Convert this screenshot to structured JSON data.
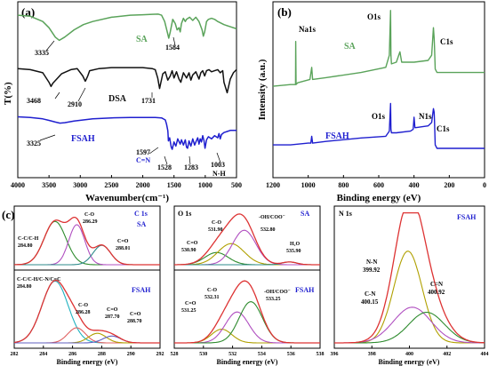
{
  "chart_data": [
    {
      "panel": "(a)",
      "type": "line",
      "xlabel": "Wavenumber(cm⁻¹)",
      "ylabel": "T(%)",
      "xlim": [
        4000,
        500
      ],
      "xticks": [
        "4000",
        "3500",
        "3000",
        "2500",
        "2000",
        "1500",
        "1000",
        "500"
      ],
      "series": [
        {
          "name": "SA",
          "color": "#5aa35a",
          "offset": 6.0,
          "x": [
            4000,
            3800,
            3600,
            3500,
            3400,
            3335,
            3250,
            3100,
            2950,
            2800,
            2500,
            2200,
            2000,
            1850,
            1750,
            1700,
            1650,
            1600,
            1584,
            1560,
            1520,
            1480,
            1450,
            1420,
            1400,
            1380,
            1350,
            1320,
            1300,
            1250,
            1200,
            1150,
            1100,
            1050,
            1030,
            1010,
            980,
            950,
            900,
            850,
            800,
            700,
            600,
            500
          ],
          "y": [
            0.6,
            0.55,
            0.3,
            0.0,
            -0.45,
            -0.6,
            -0.45,
            -0.1,
            0.15,
            0.3,
            0.5,
            0.6,
            0.62,
            0.64,
            0.65,
            0.6,
            0.3,
            -0.3,
            -0.5,
            -0.2,
            0.4,
            0.2,
            -0.1,
            0.0,
            -0.2,
            0.2,
            0.45,
            0.3,
            0.4,
            0.5,
            0.35,
            0.5,
            0.3,
            -0.1,
            -0.4,
            -0.2,
            0.3,
            0.4,
            0.45,
            0.4,
            0.3,
            0.15,
            0.05,
            -0.05
          ]
        },
        {
          "name": "DSA",
          "color": "#111111",
          "offset": 3.0,
          "x": [
            4000,
            3800,
            3600,
            3500,
            3468,
            3440,
            3300,
            3150,
            3050,
            2960,
            2920,
            2910,
            2880,
            2850,
            2700,
            2500,
            2200,
            2000,
            1850,
            1800,
            1760,
            1731,
            1710,
            1680,
            1640,
            1600,
            1560,
            1530,
            1500,
            1460,
            1420,
            1390,
            1350,
            1300,
            1260,
            1230,
            1200,
            1150,
            1100,
            1070,
            1040,
            1010,
            980,
            940,
            900,
            850,
            800,
            760,
            720,
            700,
            650,
            600,
            550,
            500
          ],
          "y": [
            1.05,
            1.0,
            0.85,
            0.4,
            0.2,
            0.35,
            0.8,
            1.0,
            1.05,
            0.7,
            0.45,
            0.5,
            0.7,
            0.95,
            1.05,
            1.1,
            1.1,
            1.1,
            1.05,
            1.0,
            0.6,
            0.1,
            0.4,
            0.8,
            0.9,
            0.5,
            0.7,
            0.95,
            0.6,
            0.9,
            0.55,
            0.4,
            0.85,
            0.6,
            0.85,
            0.5,
            0.75,
            0.9,
            0.55,
            0.85,
            0.95,
            0.7,
            0.95,
            1.0,
            0.9,
            0.95,
            1.0,
            0.85,
            0.95,
            0.4,
            -0.1,
            0.55,
            0.85,
            1.0
          ]
        },
        {
          "name": "FSAH",
          "color": "#1f1fcf",
          "offset": 0.0,
          "x": [
            4000,
            3800,
            3600,
            3500,
            3400,
            3325,
            3250,
            3100,
            2950,
            2800,
            2500,
            2200,
            2000,
            1800,
            1700,
            1640,
            1620,
            1600,
            1597,
            1590,
            1570,
            1545,
            1528,
            1500,
            1470,
            1440,
            1400,
            1380,
            1350,
            1320,
            1300,
            1283,
            1260,
            1230,
            1200,
            1170,
            1150,
            1120,
            1100,
            1080,
            1060,
            1040,
            1020,
            1003,
            980,
            950,
            900,
            850,
            800,
            780,
            760,
            740,
            700,
            650,
            600,
            500
          ],
          "y": [
            1.75,
            1.72,
            1.65,
            1.58,
            1.5,
            1.45,
            1.47,
            1.55,
            1.6,
            1.65,
            1.7,
            1.72,
            1.72,
            1.72,
            1.7,
            1.6,
            1.4,
            1.1,
            1.0,
            0.6,
            0.75,
            0.3,
            0.2,
            0.55,
            0.35,
            0.7,
            0.45,
            0.65,
            0.4,
            0.65,
            0.3,
            0.25,
            0.6,
            0.35,
            0.7,
            0.4,
            0.55,
            0.75,
            0.45,
            0.7,
            0.55,
            0.85,
            0.6,
            0.25,
            0.65,
            0.8,
            0.7,
            0.85,
            0.75,
            0.95,
            0.7,
            0.9,
            1.0,
            1.05,
            1.1,
            1.1
          ]
        }
      ],
      "annotations": [
        {
          "text": "3335",
          "x": 3335,
          "series": "SA"
        },
        {
          "text": "1584",
          "x": 1584,
          "series": "SA"
        },
        {
          "text": "3468",
          "x": 3468,
          "series": "DSA"
        },
        {
          "text": "2910",
          "x": 2910,
          "series": "DSA"
        },
        {
          "text": "1731",
          "x": 1731,
          "series": "DSA"
        },
        {
          "text": "3325",
          "x": 3325,
          "series": "FSAH"
        },
        {
          "text": "1597",
          "x": 1597,
          "series": "FSAH"
        },
        {
          "text": "C=N",
          "x": 1597,
          "series": "FSAH"
        },
        {
          "text": "1528",
          "x": 1528,
          "series": "FSAH"
        },
        {
          "text": "1283",
          "x": 1283,
          "series": "FSAH"
        },
        {
          "text": "1003",
          "x": 1003,
          "series": "FSAH"
        },
        {
          "text": "N-H",
          "x": 1003,
          "series": "FSAH"
        }
      ]
    },
    {
      "panel": "(b)",
      "type": "line",
      "xlabel": "Binding energy (eV)",
      "ylabel": "Intensity (a.u.)",
      "xlim": [
        1200,
        0
      ],
      "xticks": [
        "1200",
        "1000",
        "800",
        "600",
        "400",
        "200",
        "0"
      ],
      "series": [
        {
          "name": "SA",
          "color": "#5aa35a",
          "x": [
            1200,
            1100,
            1072,
            1071,
            1069,
            1060,
            990,
            980,
            975,
            900,
            700,
            560,
            540,
            533,
            531,
            528,
            500,
            480,
            470,
            450,
            400,
            320,
            300,
            290,
            286,
            284,
            280,
            270,
            250,
            200,
            100,
            0
          ],
          "y": [
            52,
            53,
            53,
            78,
            53,
            54,
            56,
            63,
            56,
            57,
            60,
            63,
            70,
            96,
            70,
            65,
            66,
            72,
            66,
            66,
            66,
            67,
            70,
            86,
            80,
            75,
            62,
            60,
            60,
            60,
            60,
            60
          ]
        },
        {
          "name": "FSAH",
          "color": "#1f1fcf",
          "x": [
            1200,
            1100,
            1000,
            985,
            980,
            975,
            900,
            700,
            560,
            540,
            533,
            531,
            528,
            500,
            420,
            405,
            400,
            395,
            390,
            320,
            300,
            290,
            286,
            284,
            280,
            270,
            250,
            200,
            100,
            0
          ],
          "y": [
            18,
            18,
            19,
            19,
            23,
            19,
            20,
            22,
            23,
            26,
            42,
            27,
            25,
            25,
            26,
            27,
            34,
            28,
            28,
            29,
            31,
            39,
            37,
            32,
            18,
            16,
            16,
            16,
            16,
            16
          ]
        }
      ],
      "annotations": [
        {
          "text": "Na1s",
          "series": "SA"
        },
        {
          "text": "O1s",
          "series": "SA"
        },
        {
          "text": "C1s",
          "series": "SA"
        },
        {
          "text": "O1s",
          "series": "FSAH"
        },
        {
          "text": "N1s",
          "series": "FSAH"
        },
        {
          "text": "C1s",
          "series": "FSAH"
        }
      ]
    },
    {
      "panel": "(c)",
      "type": "line",
      "subplots": [
        {
          "title": "C 1s",
          "xlabel": "Binding energy (eV)",
          "xlim": [
            282,
            292
          ],
          "xticks": [
            "282",
            "284",
            "286",
            "288",
            "290",
            "292"
          ],
          "rows": [
            {
              "label": "SA",
              "peaks": [
                {
                  "center": 284.8,
                  "height": 0.78,
                  "width": 0.75,
                  "color": "#2e8b2e",
                  "label": "C-C/C-H",
                  "value": "284.80"
                },
                {
                  "center": 286.29,
                  "height": 0.72,
                  "width": 0.55,
                  "color": "#b04fc0",
                  "label": "C-O",
                  "value": "286.29"
                },
                {
                  "center": 288.01,
                  "height": 0.35,
                  "width": 0.6,
                  "color": "#2e8b8b",
                  "label": "C=O",
                  "value": "288.01"
                }
              ]
            },
            {
              "label": "FSAH",
              "peaks": [
                {
                  "center": 284.8,
                  "height": 0.9,
                  "width": 0.9,
                  "color": "#20b2c0",
                  "label": "C-C/C-H/C-N/C=C",
                  "value": "284.80"
                },
                {
                  "center": 286.28,
                  "height": 0.22,
                  "width": 0.6,
                  "color": "#e06060",
                  "label": "C-O",
                  "value": "286.28"
                },
                {
                  "center": 287.7,
                  "height": 0.14,
                  "width": 0.6,
                  "color": "#b0a000",
                  "label": "C=O",
                  "value": "287.70"
                },
                {
                  "center": 288.7,
                  "height": 0.1,
                  "width": 0.6,
                  "color": "#6060c0",
                  "label": "C=O",
                  "value": "288.70"
                }
              ]
            }
          ]
        },
        {
          "title": "O 1s",
          "xlabel": "Binding energy (eV)",
          "xlim": [
            528,
            538
          ],
          "xticks": [
            "528",
            "530",
            "532",
            "534",
            "536",
            "538"
          ],
          "rows": [
            {
              "label": "SA",
              "peaks": [
                {
                  "center": 530.9,
                  "height": 0.22,
                  "width": 0.8,
                  "color": "#2e8b2e",
                  "label": "C=O",
                  "value": "530.90"
                },
                {
                  "center": 531.9,
                  "height": 0.38,
                  "width": 0.9,
                  "color": "#b0a000",
                  "label": "C-O",
                  "value": "531.90"
                },
                {
                  "center": 532.8,
                  "height": 0.62,
                  "width": 0.8,
                  "color": "#b04fc0",
                  "label": "-OH/COO⁻",
                  "value": "532.80"
                },
                {
                  "center": 535.9,
                  "height": 0.05,
                  "width": 0.5,
                  "color": "#2e8b8b",
                  "label": "H₂O",
                  "value": "535.90"
                }
              ]
            },
            {
              "label": "FSAH",
              "peaks": [
                {
                  "center": 531.25,
                  "height": 0.2,
                  "width": 0.7,
                  "color": "#b0a000",
                  "label": "C=O",
                  "value": "531.25"
                },
                {
                  "center": 532.31,
                  "height": 0.45,
                  "width": 0.8,
                  "color": "#b04fc0",
                  "label": "C-O",
                  "value": "532.31"
                },
                {
                  "center": 533.25,
                  "height": 0.6,
                  "width": 0.8,
                  "color": "#2e8b2e",
                  "label": "-OH/COO⁻",
                  "value": "533.25"
                }
              ]
            }
          ]
        },
        {
          "title": "N 1s",
          "xlabel": "Binding energy (eV)",
          "xlim": [
            396,
            404
          ],
          "xticks": [
            "396",
            "398",
            "400",
            "402",
            "404"
          ],
          "rows": [
            {
              "label": "FSAH",
              "peaks": [
                {
                  "center": 399.92,
                  "height": 0.72,
                  "width": 0.75,
                  "color": "#b0a000",
                  "label": "N-N",
                  "value": "399.92"
                },
                {
                  "center": 400.15,
                  "height": 0.28,
                  "width": 1.0,
                  "color": "#b04fc0",
                  "label": "C-N",
                  "value": "400.15"
                },
                {
                  "center": 400.92,
                  "height": 0.24,
                  "width": 0.95,
                  "color": "#2e8b2e",
                  "label": "C=N",
                  "value": "400.92"
                }
              ]
            }
          ]
        }
      ]
    }
  ]
}
